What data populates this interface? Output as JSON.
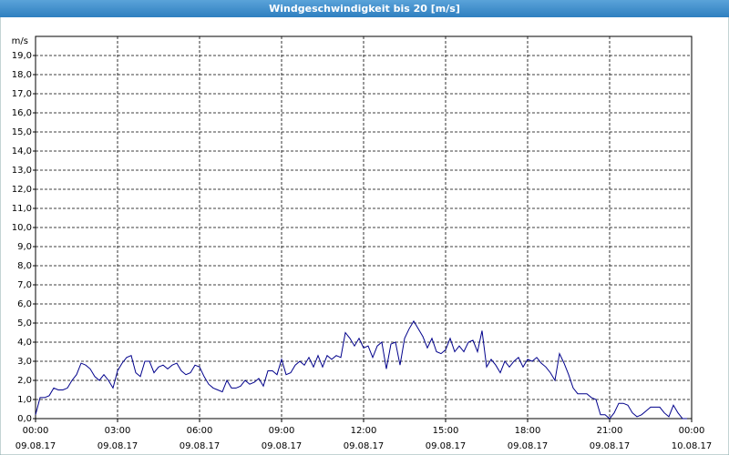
{
  "chart_data": {
    "type": "line",
    "title": "Windgeschwindigkeit bis 20 [m/s]",
    "y_label": "m/s",
    "grid": true,
    "x": [
      0,
      10,
      20,
      30,
      40,
      50,
      60,
      70,
      80,
      90,
      100,
      110,
      120,
      130,
      140,
      150,
      160,
      170,
      180,
      190,
      200,
      210,
      220,
      230,
      240,
      250,
      260,
      270,
      280,
      290,
      300,
      310,
      320,
      330,
      340,
      350,
      360,
      370,
      380,
      390,
      400,
      410,
      420,
      430,
      440,
      450,
      460,
      470,
      480,
      490,
      500,
      510,
      520,
      530,
      540,
      550,
      560,
      570,
      580,
      590,
      600,
      610,
      620,
      630,
      640,
      650,
      660,
      670,
      680,
      690,
      700,
      710,
      720,
      730,
      740,
      750,
      760,
      770,
      780,
      790,
      800,
      810,
      820,
      830,
      840,
      850,
      860,
      870,
      880,
      890,
      900,
      910,
      920,
      930,
      940,
      950,
      960,
      970,
      980,
      990,
      1000,
      1010,
      1020,
      1030,
      1040,
      1050,
      1060,
      1070,
      1080,
      1090,
      1100,
      1110,
      1120,
      1130,
      1140,
      1150,
      1160,
      1170,
      1180,
      1190,
      1200,
      1210,
      1220,
      1230,
      1240,
      1250,
      1260,
      1270,
      1280,
      1290,
      1300,
      1310,
      1320,
      1330,
      1340,
      1350,
      1360,
      1370,
      1380,
      1390,
      1400,
      1410,
      1420,
      1430
    ],
    "series": [
      {
        "color": "#00008b",
        "values": [
          0.2,
          1.1,
          1.1,
          1.2,
          1.6,
          1.5,
          1.5,
          1.6,
          2.0,
          2.3,
          2.9,
          2.8,
          2.6,
          2.2,
          2.0,
          2.3,
          2.0,
          1.6,
          2.5,
          2.9,
          3.2,
          3.3,
          2.4,
          2.2,
          3.0,
          3.0,
          2.4,
          2.7,
          2.8,
          2.6,
          2.8,
          2.9,
          2.5,
          2.3,
          2.4,
          2.8,
          2.7,
          2.2,
          1.8,
          1.6,
          1.5,
          1.4,
          2.0,
          1.6,
          1.6,
          1.7,
          2.0,
          1.8,
          1.9,
          2.1,
          1.7,
          2.5,
          2.5,
          2.3,
          3.1,
          2.3,
          2.4,
          2.8,
          3.0,
          2.8,
          3.2,
          2.7,
          3.3,
          2.7,
          3.3,
          3.1,
          3.3,
          3.2,
          4.5,
          4.2,
          3.8,
          4.2,
          3.7,
          3.8,
          3.2,
          3.8,
          4.0,
          2.6,
          3.9,
          4.0,
          2.8,
          4.2,
          4.7,
          5.1,
          4.7,
          4.3,
          3.7,
          4.2,
          3.5,
          3.4,
          3.6,
          4.2,
          3.5,
          3.8,
          3.5,
          4.0,
          4.1,
          3.5,
          4.6,
          2.7,
          3.1,
          2.8,
          2.4,
          3.0,
          2.7,
          3.0,
          3.2,
          2.7,
          3.1,
          3.0,
          3.2,
          2.9,
          2.7,
          2.4,
          2.0,
          3.4,
          2.9,
          2.3,
          1.6,
          1.3,
          1.3,
          1.3,
          1.1,
          1.0,
          0.2,
          0.2,
          0.0,
          0.3,
          0.8,
          0.8,
          0.7,
          0.3,
          0.1,
          0.2,
          0.4,
          0.6,
          0.6,
          0.6,
          0.3,
          0.1,
          0.7,
          0.3,
          0.0,
          0.0
        ]
      }
    ],
    "xlim": [
      0,
      1440
    ],
    "xticks": [
      {
        "value": 0,
        "label": "00:00",
        "date": "09.08.17"
      },
      {
        "value": 180,
        "label": "03:00",
        "date": "09.08.17"
      },
      {
        "value": 360,
        "label": "06:00",
        "date": "09.08.17"
      },
      {
        "value": 540,
        "label": "09:00",
        "date": "09.08.17"
      },
      {
        "value": 720,
        "label": "12:00",
        "date": "09.08.17"
      },
      {
        "value": 900,
        "label": "15:00",
        "date": "09.08.17"
      },
      {
        "value": 1080,
        "label": "18:00",
        "date": "09.08.17"
      },
      {
        "value": 1260,
        "label": "21:00",
        "date": "09.08.17"
      },
      {
        "value": 1440,
        "label": "00:00",
        "date": "10.08.17"
      }
    ],
    "ylim": [
      0,
      20
    ],
    "yticks": [
      {
        "value": 0,
        "label": "0,0"
      },
      {
        "value": 1,
        "label": "1,0"
      },
      {
        "value": 2,
        "label": "2,0"
      },
      {
        "value": 3,
        "label": "3,0"
      },
      {
        "value": 4,
        "label": "4,0"
      },
      {
        "value": 5,
        "label": "5,0"
      },
      {
        "value": 6,
        "label": "6,0"
      },
      {
        "value": 7,
        "label": "7,0"
      },
      {
        "value": 8,
        "label": "8,0"
      },
      {
        "value": 9,
        "label": "9,0"
      },
      {
        "value": 10,
        "label": "10,0"
      },
      {
        "value": 11,
        "label": "11,0"
      },
      {
        "value": 12,
        "label": "12,0"
      },
      {
        "value": 13,
        "label": "13,0"
      },
      {
        "value": 14,
        "label": "14,0"
      },
      {
        "value": 15,
        "label": "15,0"
      },
      {
        "value": 16,
        "label": "16,0"
      },
      {
        "value": 17,
        "label": "17,0"
      },
      {
        "value": 18,
        "label": "18,0"
      },
      {
        "value": 19,
        "label": "19,0"
      }
    ]
  }
}
